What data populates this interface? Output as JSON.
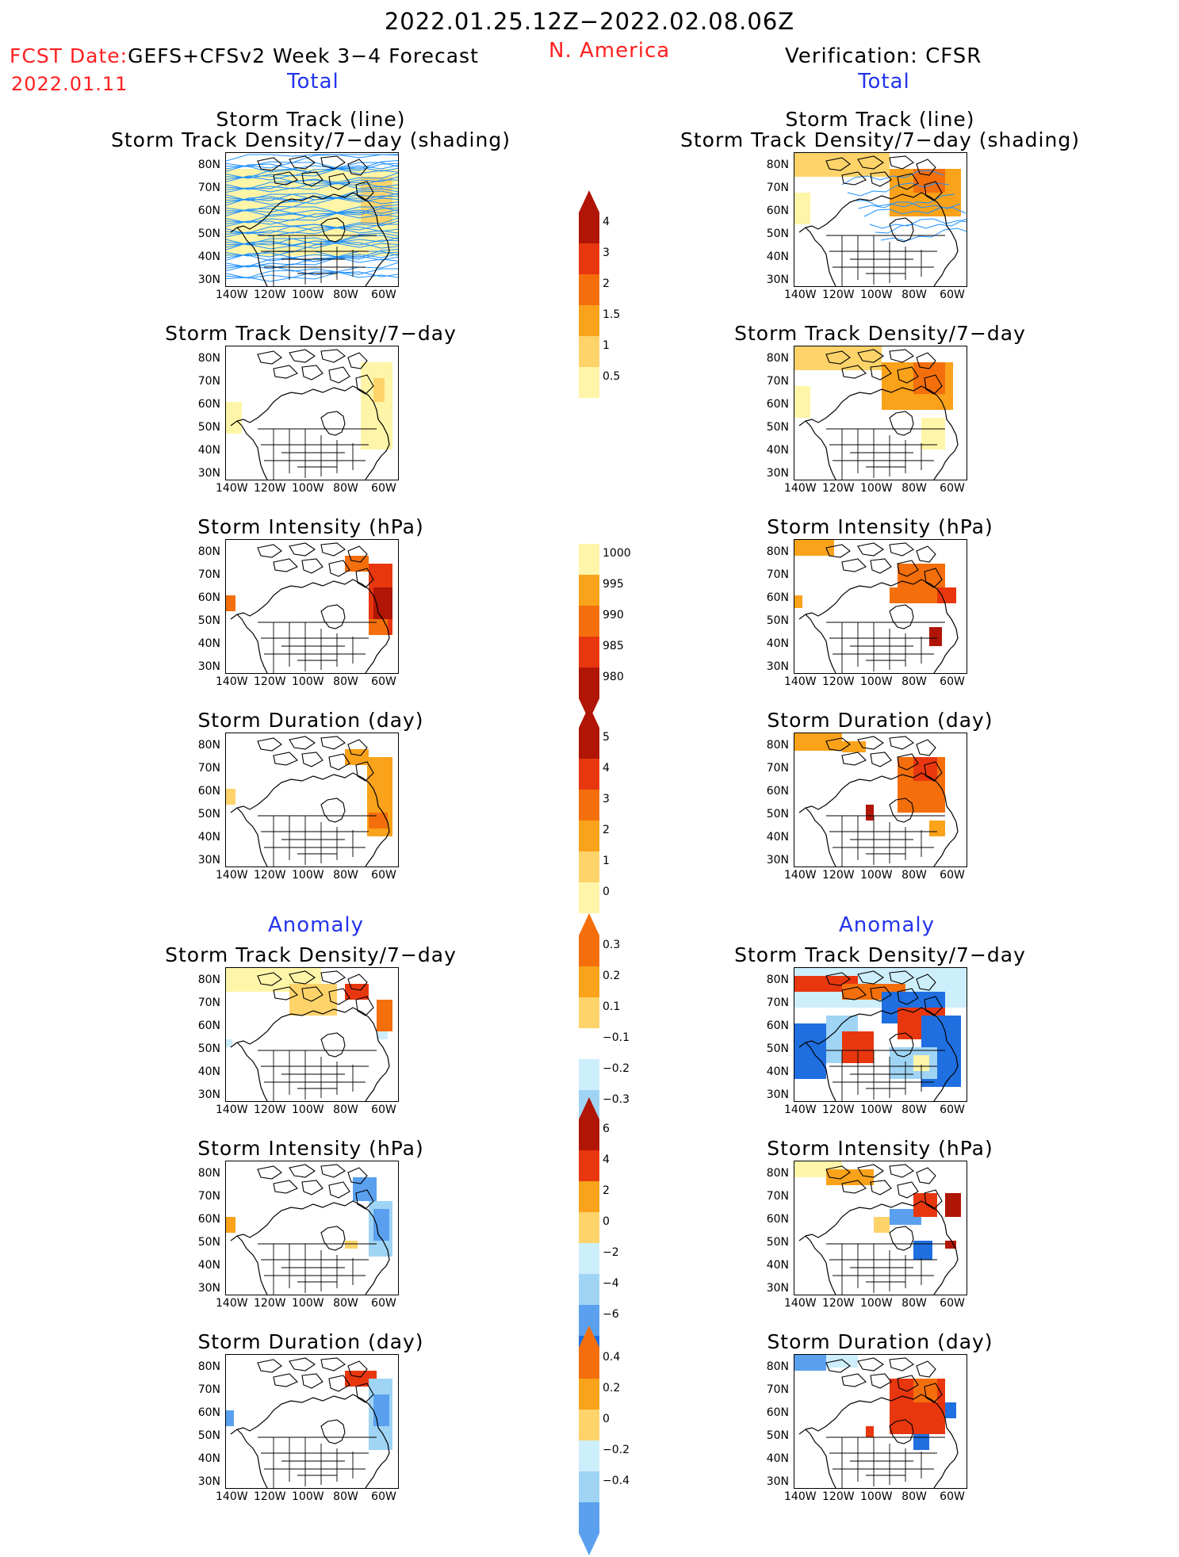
{
  "header": {
    "period": "2022.01.25.12Z−2022.02.08.06Z",
    "fcst_label": "FCST Date:",
    "fcst_model": "GEFS+CFSv2 Week 3−4 Forecast",
    "fcst_date": "2022.01.11",
    "region": "N. America",
    "verification": "Verification: CFSR"
  },
  "sections": {
    "total": "Total",
    "anomaly": "Anomaly"
  },
  "panel_titles": {
    "track_line": "Storm Track (line)",
    "track_shading": "Storm Track Density/7−day (shading)",
    "density": "Storm Track Density/7−day",
    "intensity": "Storm Intensity (hPa)",
    "duration": "Storm Duration (day)"
  },
  "axes": {
    "lat_ticks": [
      "80N",
      "70N",
      "60N",
      "50N",
      "40N",
      "30N"
    ],
    "lon_ticks": [
      "140W",
      "120W",
      "100W",
      "80W",
      "60W"
    ]
  },
  "colorbars": {
    "total_density": [
      "4",
      "3",
      "2",
      "1.5",
      "1",
      "0.5"
    ],
    "total_intensity": [
      "1000",
      "995",
      "990",
      "985",
      "980"
    ],
    "total_duration": [
      "5",
      "4",
      "3",
      "2",
      "1",
      "0"
    ],
    "anom_density": [
      "0.3",
      "0.2",
      "0.1",
      "−0.1",
      "−0.2",
      "−0.3"
    ],
    "anom_intensity": [
      "6",
      "4",
      "2",
      "0",
      "−2",
      "−4",
      "−6"
    ],
    "anom_duration": [
      "0.4",
      "0.2",
      "0",
      "−0.2",
      "−0.4"
    ]
  },
  "colors": {
    "title_red": "#ff2020",
    "section_blue": "#2233ee",
    "track_line": "#1e90ff",
    "pale_yellow": "#fff5a8",
    "yellow": "#fdd36a",
    "orange": "#f9a21a",
    "dark_orange": "#f46f0c",
    "red": "#e8370e",
    "dark_red": "#b01505",
    "pale_blue": "#cdeefb",
    "light_blue": "#9fd4f5",
    "mid_blue": "#5aa0ee",
    "blue": "#1f6fe0"
  }
}
